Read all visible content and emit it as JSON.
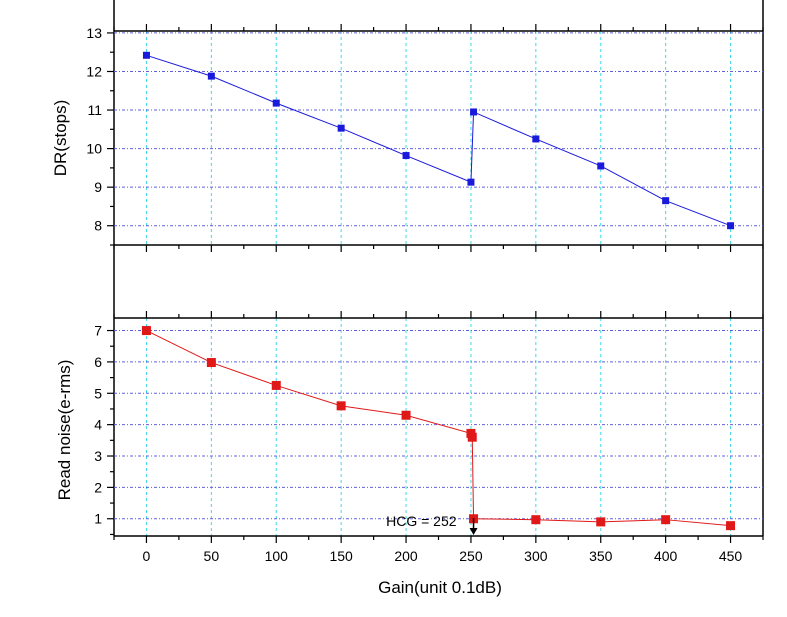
{
  "chart_data": [
    {
      "type": "line",
      "ylabel": "DR(stops)",
      "xlabel": "",
      "xlim": [
        -25,
        475
      ],
      "ylim": [
        7.5,
        13.05
      ],
      "x_ticks": [
        0,
        50,
        100,
        150,
        200,
        250,
        300,
        350,
        400,
        450
      ],
      "y_ticks": [
        8,
        9,
        10,
        11,
        12,
        13
      ],
      "grid": true,
      "series": [
        {
          "color": "#1a1adc",
          "marker": "square",
          "x": [
            0,
            50,
            100,
            150,
            200,
            250,
            252,
            300,
            350,
            400,
            450
          ],
          "y": [
            12.42,
            11.88,
            11.18,
            10.53,
            9.82,
            9.13,
            10.95,
            10.25,
            9.55,
            8.65,
            8.0
          ]
        }
      ]
    },
    {
      "type": "line",
      "ylabel": "Read noise(e-rms)",
      "xlabel": "Gain(unit 0.1dB)",
      "xlim": [
        -25,
        475
      ],
      "ylim": [
        0.45,
        7.4
      ],
      "x_ticks": [
        0,
        50,
        100,
        150,
        200,
        250,
        300,
        350,
        400,
        450
      ],
      "y_ticks": [
        1,
        2,
        3,
        4,
        5,
        6,
        7
      ],
      "grid": true,
      "series": [
        {
          "color": "#e01818",
          "marker": "square",
          "x": [
            0,
            50,
            100,
            150,
            200,
            250,
            251,
            252,
            300,
            350,
            400,
            450
          ],
          "y": [
            7.0,
            5.98,
            5.25,
            4.6,
            4.3,
            3.72,
            3.6,
            1.0,
            0.97,
            0.9,
            0.97,
            0.78
          ]
        }
      ],
      "annotations": [
        {
          "text": "HCG = 252",
          "x": 252,
          "y": 0.45,
          "arrow": true
        }
      ]
    }
  ]
}
